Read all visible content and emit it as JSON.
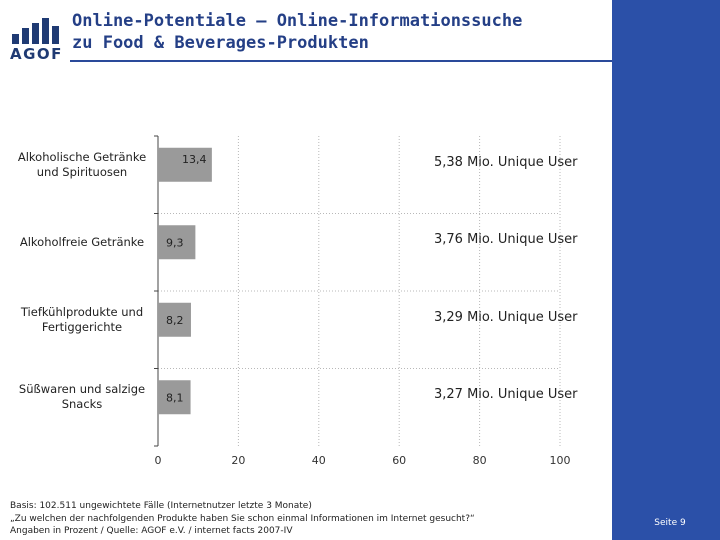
{
  "header": {
    "logo_text": "AGOF",
    "title_line1": "Online-Potentiale – Online-Informationssuche",
    "title_line2": "zu Food & Beverages-Produkten"
  },
  "chart_data": {
    "type": "bar",
    "orientation": "horizontal",
    "categories": [
      "Alkoholische Getränke und Spirituosen",
      "Alkoholfreie Getränke",
      "Tiefkühlprodukte und Fertiggerichte",
      "Süßwaren und salzige Snacks"
    ],
    "values": [
      13.4,
      9.3,
      8.2,
      8.1
    ],
    "value_labels": [
      "13,4",
      "9,3",
      "8,2",
      "8,1"
    ],
    "annotations": [
      "5,38 Mio. Unique User",
      "3,76 Mio. Unique User",
      "3,29 Mio. Unique User",
      "3,27 Mio. Unique User"
    ],
    "xlim": [
      0,
      100
    ],
    "xticks": [
      0,
      20,
      40,
      60,
      80,
      100
    ],
    "grid": true,
    "bar_color": "#9a9a9a"
  },
  "footnote": {
    "line1": "Basis: 102.511 ungewichtete Fälle (Internetnutzer letzte 3 Monate)",
    "line2": "„Zu welchen der nachfolgenden Produkte haben Sie schon einmal Informationen im Internet gesucht?“",
    "line3": "Angaben in Prozent / Quelle: AGOF e.V. / internet facts 2007-IV"
  },
  "page": {
    "number": "Seite 9"
  },
  "colors": {
    "brand_blue": "#2b50a8",
    "title_blue": "#243f86",
    "bar": "#9a9a9a"
  }
}
